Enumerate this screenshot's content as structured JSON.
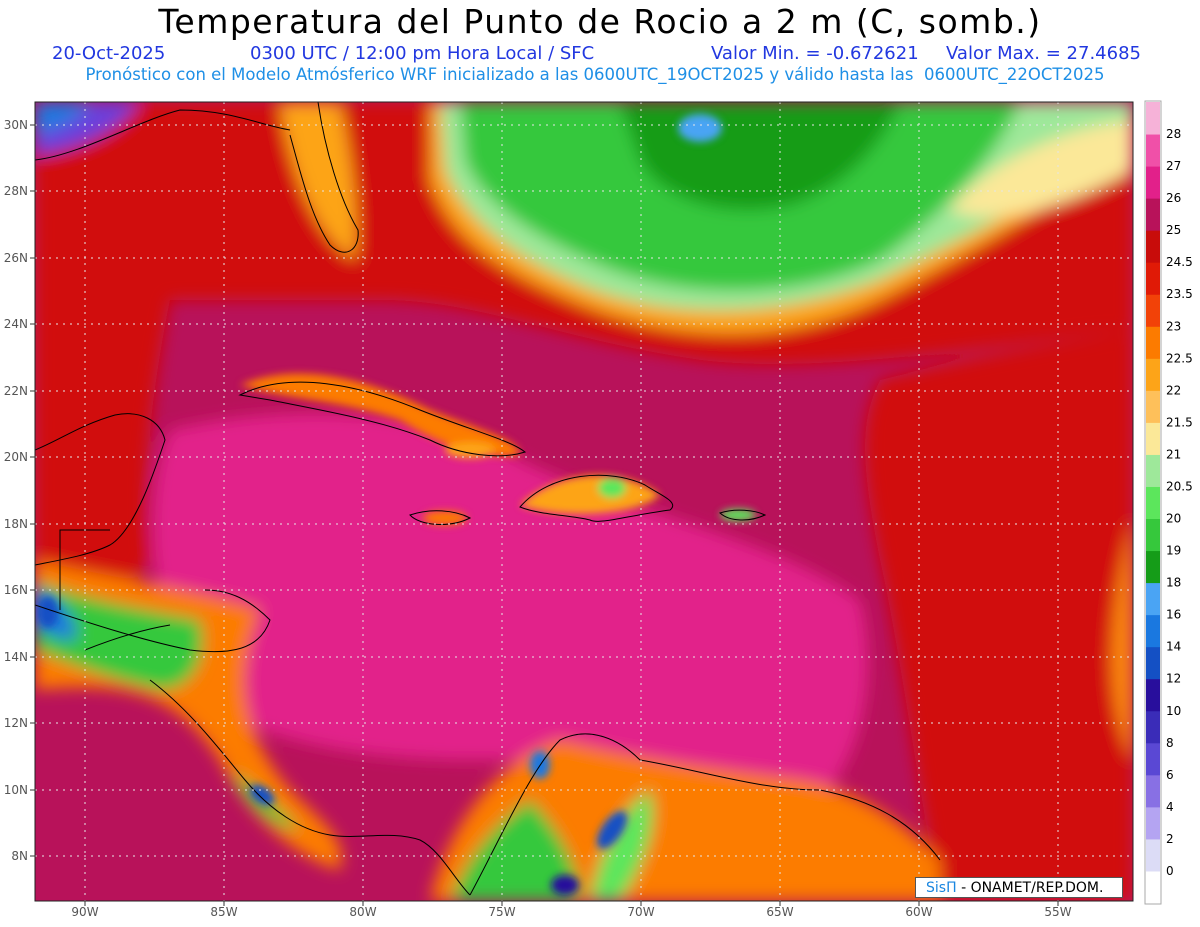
{
  "header": {
    "title": "Temperatura del Punto de Rocio a 2 m (C, somb.)",
    "date": "20-Oct-2025",
    "time": "0300 UTC / 12:00 pm Hora Local / SFC",
    "vmin": "Valor Min. = -0.672621",
    "vmax": "Valor Max. = 27.4685",
    "model_info": "Pronóstico con el Modelo Atmósferico WRF inicializado a las 0600UTC_19OCT2025 y válido hasta las  0600UTC_22OCT2025"
  },
  "map": {
    "lon_range": [
      -92,
      -52.5
    ],
    "lat_range": [
      6.7,
      30.6
    ],
    "lat_ticks": [
      "30N",
      "28N",
      "26N",
      "24N",
      "22N",
      "20N",
      "18N",
      "16N",
      "14N",
      "12N",
      "10N",
      "8N"
    ],
    "lon_ticks": [
      "90W",
      "85W",
      "80W",
      "75W",
      "70W",
      "65W",
      "60W",
      "55W"
    ],
    "grid": true
  },
  "legend": {
    "levels": [
      "0",
      "2",
      "4",
      "6",
      "8",
      "10",
      "12",
      "14",
      "16",
      "18",
      "19",
      "20",
      "20.5",
      "21",
      "21.5",
      "22",
      "22.5",
      "23",
      "23.5",
      "24.5",
      "25",
      "26",
      "27",
      "28"
    ],
    "colors": [
      "#ffffff",
      "#dcdcf6",
      "#b4a4f2",
      "#8870e4",
      "#5a48d4",
      "#3a2cb8",
      "#280e9c",
      "#1450c4",
      "#1a78e0",
      "#4aa4f4",
      "#159c18",
      "#36c83c",
      "#5ce65c",
      "#9ee89a",
      "#fbe898",
      "#fec05a",
      "#fda418",
      "#fc7b00",
      "#f24208",
      "#e01a06",
      "#c80c0a",
      "#b8125a",
      "#e2208a",
      "#f050a8",
      "#f6b2d8"
    ]
  },
  "credit": {
    "brand": "SisΠ",
    "text": "- ONAMET/REP.DOM."
  },
  "colors": {
    "title": "#000000",
    "subtitle_blue": "#2238e0",
    "info_blue": "#1e8fe6"
  }
}
